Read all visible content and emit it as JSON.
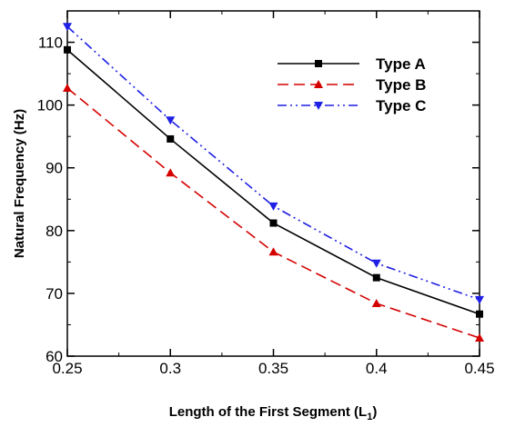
{
  "chart_data": {
    "type": "line",
    "xlabel": "Length of the First Segment (L",
    "xlabel_sub": "1",
    "xlabel_end": ")",
    "ylabel": "Natural Frequency (Hz)",
    "xlim": [
      0.25,
      0.45
    ],
    "ylim": [
      60,
      115
    ],
    "xticks": [
      0.25,
      0.3,
      0.35,
      0.4,
      0.45
    ],
    "xtick_labels": [
      "0.25",
      "0.3",
      "0.35",
      "0.4",
      "0.45"
    ],
    "yticks": [
      60,
      70,
      80,
      90,
      100,
      110
    ],
    "ytick_labels": [
      "60",
      "70",
      "80",
      "90",
      "100",
      "110"
    ],
    "grid": false,
    "legend_position": "top-right",
    "x": [
      0.25,
      0.3,
      0.35,
      0.4,
      0.45
    ],
    "series": [
      {
        "name": "Type A",
        "values": [
          108.8,
          94.6,
          81.2,
          72.5,
          66.7
        ],
        "color": "#000000",
        "dash": "solid",
        "marker": "square"
      },
      {
        "name": "Type B",
        "values": [
          102.7,
          89.2,
          76.6,
          68.4,
          62.9
        ],
        "color": "#d40000",
        "dash": "dash",
        "marker": "triangle-up"
      },
      {
        "name": "Type C",
        "values": [
          112.5,
          97.6,
          83.9,
          74.8,
          69.0
        ],
        "color": "#1f1fe6",
        "dash": "dashdot",
        "marker": "triangle-down"
      }
    ]
  }
}
